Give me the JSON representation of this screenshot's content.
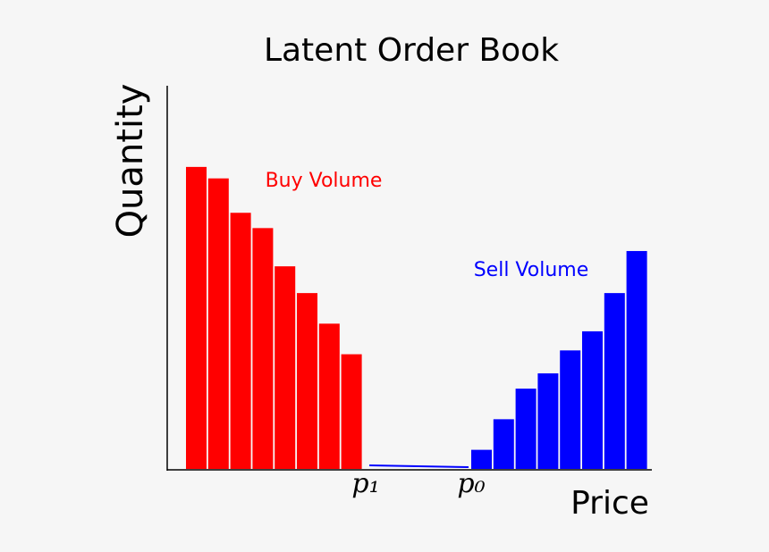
{
  "chart_data": {
    "type": "bar",
    "title": "Latent Order Book",
    "x_label": "Price",
    "y_label": "Quantity",
    "ylim": [
      0,
      100
    ],
    "series": [
      {
        "name": "Buy Volume",
        "color": "#ff0000",
        "values": [
          79,
          76,
          67,
          63,
          53,
          46,
          38,
          30
        ]
      },
      {
        "name": "Sell Volume",
        "color": "#0000ff",
        "values": [
          5,
          13,
          21,
          25,
          31,
          36,
          46,
          57
        ]
      }
    ],
    "annotations": [
      "p₁",
      "p₀"
    ]
  }
}
